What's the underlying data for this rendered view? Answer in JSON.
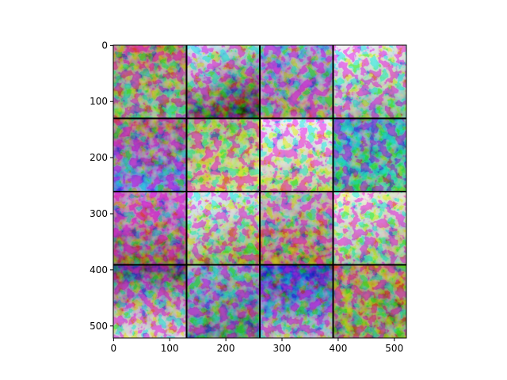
{
  "chart_data": {
    "type": "image",
    "xlim": [
      -0.5,
      521.5
    ],
    "ylim": [
      521.5,
      -0.5
    ],
    "xticks": [
      0,
      100,
      200,
      300,
      400,
      500
    ],
    "yticks": [
      0,
      100,
      200,
      300,
      400,
      500
    ]
  }
}
